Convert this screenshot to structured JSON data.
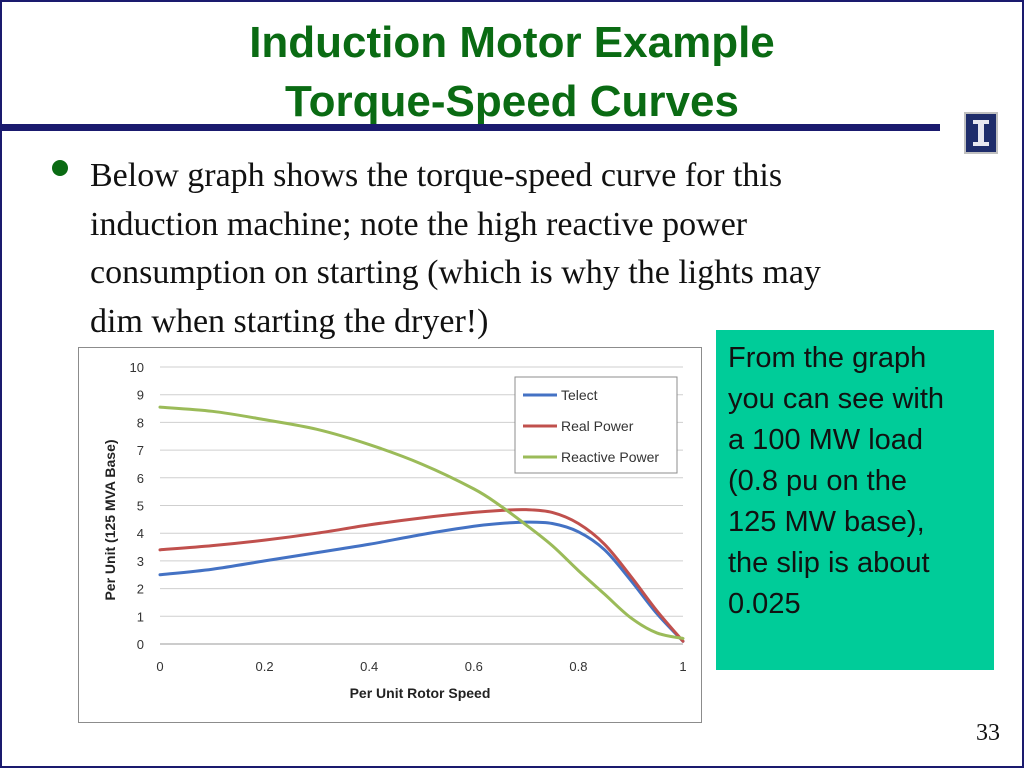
{
  "slide": {
    "title_line1": "Induction Motor Example",
    "title_line2": "Torque-Speed Curves",
    "bullet_lines": [
      "Below graph shows the torque-speed curve for this",
      "induction machine; note the high reactive power",
      "consumption on starting (which is why the lights may",
      "dim when starting the dryer!)"
    ],
    "callout_lines": [
      "From the graph",
      "you can see with",
      "a 100 MW load",
      "(0.8 pu on the",
      "125 MW base),",
      "the slip is about",
      "0.025"
    ],
    "page_number": "33"
  },
  "colors": {
    "title": "#0a6b13",
    "callout_bg": "#00cc99",
    "rule": "#1a1a6e"
  },
  "chart_data": {
    "type": "line",
    "xlabel": "Per Unit Rotor Speed",
    "ylabel": "Per Unit (125 MVA Base)",
    "xlim": [
      0,
      1
    ],
    "ylim": [
      0,
      10
    ],
    "x_ticks": [
      "0",
      "0.2",
      "0.4",
      "0.6",
      "0.8",
      "1"
    ],
    "y_ticks": [
      "0",
      "1",
      "2",
      "3",
      "4",
      "5",
      "6",
      "7",
      "8",
      "9",
      "10"
    ],
    "grid": true,
    "legend_position": "top-right",
    "series": [
      {
        "name": "Telect",
        "color": "#4472c4",
        "x": [
          0,
          0.1,
          0.2,
          0.3,
          0.4,
          0.5,
          0.6,
          0.65,
          0.7,
          0.75,
          0.8,
          0.85,
          0.9,
          0.95,
          1.0
        ],
        "y": [
          2.5,
          2.7,
          3.0,
          3.3,
          3.6,
          3.95,
          4.25,
          4.35,
          4.4,
          4.35,
          4.05,
          3.4,
          2.3,
          1.1,
          0.1
        ]
      },
      {
        "name": "Real Power",
        "color": "#c0504d",
        "x": [
          0,
          0.1,
          0.2,
          0.3,
          0.4,
          0.5,
          0.6,
          0.65,
          0.7,
          0.75,
          0.8,
          0.85,
          0.9,
          0.95,
          1.0
        ],
        "y": [
          3.4,
          3.55,
          3.75,
          4.0,
          4.3,
          4.55,
          4.75,
          4.82,
          4.85,
          4.75,
          4.35,
          3.6,
          2.45,
          1.2,
          0.1
        ]
      },
      {
        "name": "Reactive Power",
        "color": "#9bbb59",
        "x": [
          0,
          0.1,
          0.2,
          0.3,
          0.4,
          0.5,
          0.6,
          0.65,
          0.7,
          0.75,
          0.8,
          0.85,
          0.9,
          0.95,
          1.0
        ],
        "y": [
          8.55,
          8.4,
          8.1,
          7.75,
          7.2,
          6.5,
          5.6,
          5.0,
          4.3,
          3.55,
          2.65,
          1.8,
          0.95,
          0.4,
          0.2
        ]
      }
    ]
  }
}
